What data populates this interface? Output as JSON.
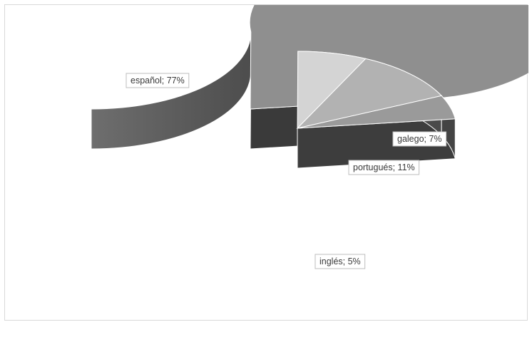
{
  "chart_data": {
    "type": "pie",
    "style": "3d-exploded",
    "title": "",
    "slices": [
      {
        "label": "español",
        "value": 77,
        "percent_label": "77%",
        "color": "#8f8f8f",
        "side_color": "#595959"
      },
      {
        "label": "galego",
        "value": 7,
        "percent_label": "7%",
        "color": "#d4d4d4",
        "side_color": "#3f3f3f"
      },
      {
        "label": "portugués",
        "value": 11,
        "percent_label": "11%",
        "color": "#b2b2b2",
        "side_color": "#4a4a4a"
      },
      {
        "label": "inglés",
        "value": 5,
        "percent_label": "5%",
        "color": "#9a9a9a",
        "side_color": "#444444"
      }
    ],
    "data_labels": [
      {
        "text": "español; 77%"
      },
      {
        "text": "galego; 7%"
      },
      {
        "text": "portugués; 11%"
      },
      {
        "text": "inglés; 5%"
      }
    ],
    "colors": {
      "edge": "#ffffff",
      "inner_wall": "#3a3a3a",
      "outer_wall_dark": "#4d4d4d",
      "outer_wall_light": "#6e6e6e"
    }
  }
}
